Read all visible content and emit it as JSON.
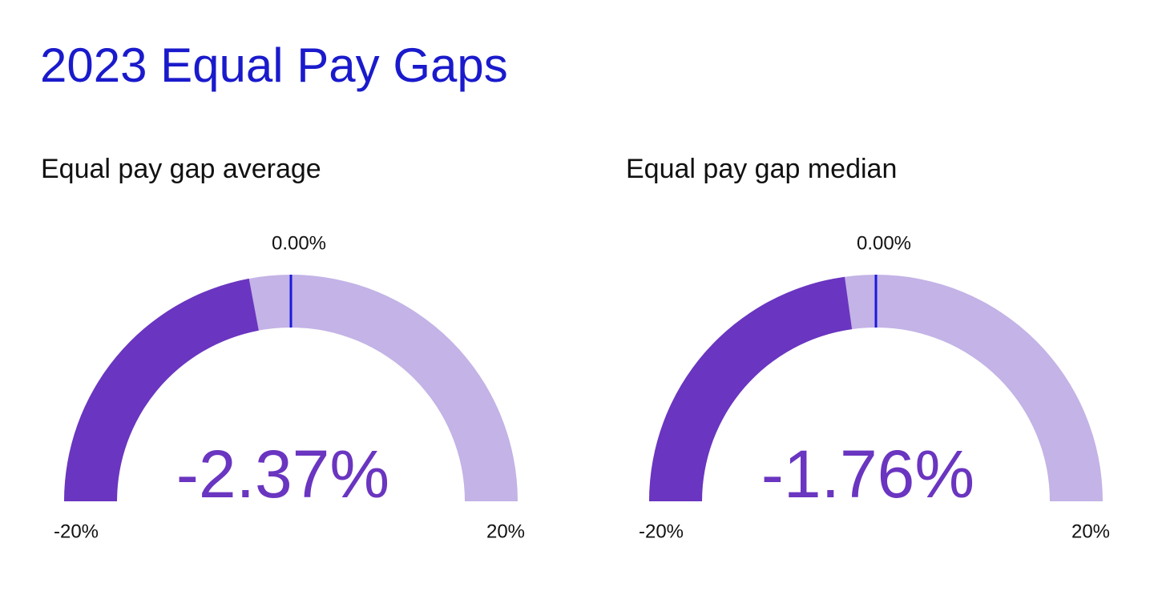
{
  "title": "2023 Equal Pay Gaps",
  "chart_data": [
    {
      "type": "gauge",
      "title": "Equal pay gap average",
      "values": [
        -2.37
      ],
      "value_labels": [
        "-2.37%"
      ],
      "lim": [
        -20,
        20
      ],
      "ticks": [
        {
          "value": -20,
          "label": "-20%"
        },
        {
          "value": 0,
          "label": "0.00%"
        },
        {
          "value": 20,
          "label": "20%"
        }
      ],
      "color": "#6a35c0",
      "track_color": "#c3b3e6",
      "marker_color": "#1a1adb"
    },
    {
      "type": "gauge",
      "title": "Equal pay gap median",
      "values": [
        -1.76
      ],
      "value_labels": [
        "-1.76%"
      ],
      "lim": [
        -20,
        20
      ],
      "ticks": [
        {
          "value": -20,
          "label": "-20%"
        },
        {
          "value": 0,
          "label": "0.00%"
        },
        {
          "value": 20,
          "label": "20%"
        }
      ],
      "color": "#6a35c0",
      "track_color": "#c3b3e6",
      "marker_color": "#1a1adb"
    }
  ]
}
